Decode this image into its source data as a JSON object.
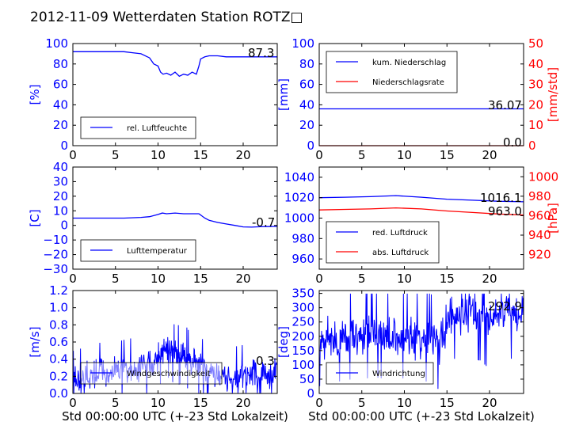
{
  "title": "2012-11-09 Wetterdaten Station ROTZ□",
  "colors": {
    "blue": "#0000ff",
    "red": "#ff0000",
    "black": "#000000"
  },
  "chart_data": [
    {
      "type": "line",
      "ylabel": "[%]",
      "xlim": [
        0,
        24
      ],
      "ylim": [
        0,
        100
      ],
      "xticks": [
        "0",
        "5",
        "10",
        "15",
        "20"
      ],
      "xtick_values": [
        0,
        5,
        10,
        15,
        20
      ],
      "yticks": [
        "0",
        "20",
        "40",
        "60",
        "80",
        "100"
      ],
      "ytick_values": [
        0,
        20,
        40,
        60,
        80,
        100
      ],
      "tick_color": "blue",
      "series": [
        {
          "name": "rel. Luftfeuchte",
          "color": "blue",
          "axis": "left",
          "x": [
            0,
            2,
            4,
            6,
            7,
            8,
            9,
            9.5,
            10,
            10.3,
            10.6,
            11,
            11.5,
            12,
            12.5,
            13,
            13.5,
            14,
            14.5,
            14.8,
            15,
            15.5,
            16,
            17,
            18,
            19,
            20,
            21,
            22,
            23,
            24
          ],
          "y": [
            92,
            92,
            92,
            92,
            91,
            90,
            86,
            80,
            78,
            72,
            70,
            71,
            69,
            72,
            68,
            70,
            69,
            72,
            70,
            78,
            85,
            87,
            88,
            88,
            87,
            87,
            87,
            87,
            87,
            87,
            87
          ]
        }
      ],
      "legend_position": "lower-center",
      "annotations": [
        "87.3"
      ]
    },
    {
      "type": "line",
      "ylabel": "[mm]",
      "ylabel_right": "[mm/std]",
      "xlim": [
        0,
        24
      ],
      "ylim": [
        0,
        100
      ],
      "ylim_right": [
        0,
        50
      ],
      "xticks": [
        "0",
        "5",
        "10",
        "15",
        "20"
      ],
      "xtick_values": [
        0,
        5,
        10,
        15,
        20
      ],
      "yticks": [
        "0",
        "20",
        "40",
        "60",
        "80",
        "100"
      ],
      "ytick_values": [
        0,
        20,
        40,
        60,
        80,
        100
      ],
      "yticks_right": [
        "0",
        "10",
        "20",
        "30",
        "40",
        "50"
      ],
      "ytick_right_values": [
        0,
        10,
        20,
        30,
        40,
        50
      ],
      "tick_color": "blue",
      "tick_color_right": "red",
      "series": [
        {
          "name": "kum. Niederschlag",
          "color": "blue",
          "axis": "left",
          "x": [
            0,
            24
          ],
          "y": [
            36.07,
            36.07
          ]
        },
        {
          "name": "Niederschlagsrate",
          "color": "red",
          "axis": "right",
          "x": [
            0,
            24
          ],
          "y": [
            0,
            0
          ]
        }
      ],
      "legend_position": "upper-left",
      "annotations": [
        "36.07",
        "0.0"
      ]
    },
    {
      "type": "line",
      "ylabel": "[C]",
      "xlim": [
        0,
        24
      ],
      "ylim": [
        -30,
        40
      ],
      "xticks": [
        "0",
        "5",
        "10",
        "15",
        "20"
      ],
      "xtick_values": [
        0,
        5,
        10,
        15,
        20
      ],
      "yticks": [
        "−30",
        "−20",
        "−10",
        "0",
        "10",
        "20",
        "30",
        "40"
      ],
      "ytick_values": [
        -30,
        -20,
        -10,
        0,
        10,
        20,
        30,
        40
      ],
      "tick_color": "blue",
      "series": [
        {
          "name": "Lufttemperatur",
          "color": "blue",
          "axis": "left",
          "x": [
            0,
            2,
            4,
            6,
            8,
            9,
            10,
            10.5,
            11,
            12,
            13,
            14,
            14.8,
            15.5,
            16,
            17,
            18,
            19,
            20,
            21,
            22,
            23,
            24
          ],
          "y": [
            5,
            5,
            5,
            5,
            5.5,
            6,
            7.5,
            8.5,
            8,
            8.5,
            8,
            8,
            8,
            5,
            3.5,
            2,
            1,
            0,
            -1,
            -1.2,
            -0.9,
            -0.8,
            -0.7
          ]
        }
      ],
      "legend_position": "lower-center",
      "annotations": [
        "-0.7"
      ]
    },
    {
      "type": "line",
      "ylabel": "",
      "ylabel_right": "[hPa]",
      "xlim": [
        0,
        24
      ],
      "ylim": [
        950,
        1050
      ],
      "ylim_right": [
        905,
        1010
      ],
      "xticks": [
        "0",
        "5",
        "10",
        "15",
        "20"
      ],
      "xtick_values": [
        0,
        5,
        10,
        15,
        20
      ],
      "yticks": [
        "960",
        "980",
        "1000",
        "1020",
        "1040"
      ],
      "ytick_values": [
        960,
        980,
        1000,
        1020,
        1040
      ],
      "yticks_right": [
        "920",
        "940",
        "960",
        "980",
        "1000"
      ],
      "ytick_right_values": [
        920,
        940,
        960,
        980,
        1000
      ],
      "tick_color": "blue",
      "tick_color_right": "red",
      "series": [
        {
          "name": "red. Luftdruck",
          "color": "blue",
          "axis": "left",
          "x": [
            0,
            3,
            6,
            9,
            12,
            15,
            18,
            21,
            24
          ],
          "y": [
            1020,
            1020.5,
            1021,
            1022,
            1020.5,
            1018.5,
            1017.5,
            1016.5,
            1016
          ]
        },
        {
          "name": "abs. Luftdruck",
          "color": "red",
          "axis": "left",
          "x": [
            0,
            3,
            6,
            9,
            12,
            15,
            18,
            21,
            24
          ],
          "y": [
            1008,
            1008.5,
            1009,
            1010,
            1009,
            1007,
            1005.5,
            1004,
            1003
          ]
        }
      ],
      "legend_position": "lower-left",
      "annotations": [
        "1016.1",
        "963.0"
      ]
    },
    {
      "type": "line",
      "ylabel": "[m/s]",
      "xlabel": "Std 00:00:00 UTC (+-23 Std Lokalzeit)",
      "xlim": [
        0,
        24
      ],
      "ylim": [
        0,
        1.2
      ],
      "xticks": [
        "0",
        "5",
        "10",
        "15",
        "20"
      ],
      "xtick_values": [
        0,
        5,
        10,
        15,
        20
      ],
      "yticks": [
        "0.0",
        "0.2",
        "0.4",
        "0.6",
        "0.8",
        "1.0",
        "1.2"
      ],
      "ytick_values": [
        0,
        0.2,
        0.4,
        0.6,
        0.8,
        1.0,
        1.2
      ],
      "tick_color": "blue",
      "series": [
        {
          "name": "Windgeschwindigkeit",
          "color": "blue",
          "axis": "left",
          "noisy": true,
          "x": [
            0,
            1,
            2,
            3,
            4,
            5,
            6,
            7,
            8,
            9,
            10,
            10.5,
            11,
            11.5,
            12,
            12.5,
            13,
            13.5,
            14,
            14.5,
            15,
            16,
            17,
            18,
            19,
            20,
            21,
            22,
            23,
            24
          ],
          "y": [
            0.15,
            0.18,
            0.2,
            0.25,
            0.22,
            0.25,
            0.28,
            0.3,
            0.3,
            0.35,
            0.4,
            0.5,
            0.55,
            0.5,
            0.45,
            0.45,
            0.5,
            0.4,
            0.35,
            0.35,
            0.3,
            0.25,
            0.22,
            0.2,
            0.2,
            0.22,
            0.25,
            0.25,
            0.22,
            0.3
          ]
        }
      ],
      "legend_position": "lower-center",
      "annotations": [
        "0.3"
      ]
    },
    {
      "type": "line",
      "ylabel": "[deg]",
      "xlabel": "Std 00:00:00 UTC (+-23 Std Lokalzeit)",
      "xlim": [
        0,
        24
      ],
      "ylim": [
        0,
        360
      ],
      "xticks": [
        "0",
        "5",
        "10",
        "15",
        "20"
      ],
      "xtick_values": [
        0,
        5,
        10,
        15,
        20
      ],
      "yticks": [
        "0",
        "50",
        "100",
        "150",
        "200",
        "250",
        "300",
        "350"
      ],
      "ytick_values": [
        0,
        50,
        100,
        150,
        200,
        250,
        300,
        350
      ],
      "tick_color": "blue",
      "series": [
        {
          "name": "Windrichtung",
          "color": "blue",
          "axis": "left",
          "noisy": true,
          "x": [
            0,
            1,
            2,
            3,
            4,
            5,
            6,
            7,
            8,
            9,
            10,
            11,
            12,
            13,
            14,
            15,
            16,
            17,
            18,
            19,
            20,
            21,
            22,
            23,
            24
          ],
          "y": [
            180,
            200,
            190,
            210,
            200,
            195,
            215,
            210,
            205,
            200,
            210,
            190,
            200,
            195,
            170,
            250,
            280,
            285,
            280,
            270,
            240,
            285,
            280,
            275,
            270
          ]
        }
      ],
      "legend_position": "lower-left",
      "annotations": [
        "292.9"
      ]
    }
  ]
}
